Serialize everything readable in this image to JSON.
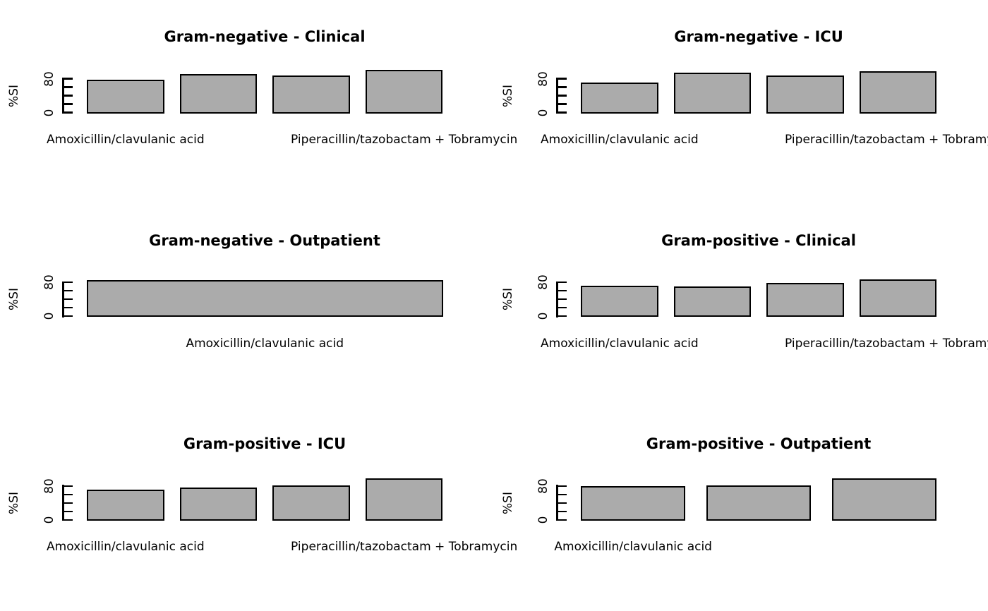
{
  "figure": {
    "background": "#FFFFFF",
    "text_color": "#000000",
    "bar_fill": "#ABABAB",
    "bar_border": "#000000"
  },
  "chart_data": [
    {
      "type": "bar",
      "title": "Gram-negative - Clinical",
      "grid": {
        "row": 0,
        "col": 0
      },
      "ylabel": "%SI",
      "ylim": [
        0,
        80
      ],
      "yticks": [
        0,
        20,
        40,
        60,
        80
      ],
      "ytick_labels_shown": [
        "0",
        "80"
      ],
      "values": [
        76,
        88,
        86,
        98
      ],
      "visible_categories": [
        {
          "label": "Amoxicillin/clavulanic acid",
          "bar_index": 0
        },
        {
          "label": "Piperacillin/tazobactam + Tobramycin",
          "bar_index": 3
        }
      ]
    },
    {
      "type": "bar",
      "title": "Gram-negative - ICU",
      "grid": {
        "row": 0,
        "col": 1
      },
      "ylabel": "%SI",
      "ylim": [
        0,
        80
      ],
      "yticks": [
        0,
        20,
        40,
        60,
        80
      ],
      "ytick_labels_shown": [
        "0",
        "80"
      ],
      "values": [
        69,
        92,
        85,
        96
      ],
      "visible_categories": [
        {
          "label": "Amoxicillin/clavulanic acid",
          "bar_index": 0
        },
        {
          "label": "Piperacillin/tazobactam + Tobramycin",
          "bar_index": 3
        }
      ]
    },
    {
      "type": "bar",
      "title": "Gram-negative - Outpatient",
      "grid": {
        "row": 1,
        "col": 0
      },
      "ylabel": "%SI",
      "ylim": [
        0,
        80
      ],
      "yticks": [
        0,
        20,
        40,
        60,
        80
      ],
      "ytick_labels_shown": [
        "0",
        "80"
      ],
      "values": [
        83
      ],
      "visible_categories": [
        {
          "label": "Amoxicillin/clavulanic acid",
          "bar_index": 0
        }
      ]
    },
    {
      "type": "bar",
      "title": "Gram-positive - Clinical",
      "grid": {
        "row": 1,
        "col": 1
      },
      "ylabel": "%SI",
      "ylim": [
        0,
        80
      ],
      "yticks": [
        0,
        20,
        40,
        60,
        80
      ],
      "ytick_labels_shown": [
        "0",
        "80"
      ],
      "values": [
        70,
        68,
        77,
        85
      ],
      "visible_categories": [
        {
          "label": "Amoxicillin/clavulanic acid",
          "bar_index": 0
        },
        {
          "label": "Piperacillin/tazobactam + Tobramycin",
          "bar_index": 3
        }
      ]
    },
    {
      "type": "bar",
      "title": "Gram-positive - ICU",
      "grid": {
        "row": 2,
        "col": 0
      },
      "ylabel": "%SI",
      "ylim": [
        0,
        80
      ],
      "yticks": [
        0,
        20,
        40,
        60,
        80
      ],
      "ytick_labels_shown": [
        "0",
        "80"
      ],
      "values": [
        69,
        74,
        80,
        96
      ],
      "visible_categories": [
        {
          "label": "Amoxicillin/clavulanic acid",
          "bar_index": 0
        },
        {
          "label": "Piperacillin/tazobactam + Tobramycin",
          "bar_index": 3
        }
      ]
    },
    {
      "type": "bar",
      "title": "Gram-positive - Outpatient",
      "grid": {
        "row": 2,
        "col": 1
      },
      "ylabel": "%SI",
      "ylim": [
        0,
        80
      ],
      "yticks": [
        0,
        20,
        40,
        60,
        80
      ],
      "ytick_labels_shown": [
        "0",
        "80"
      ],
      "values": [
        77,
        80,
        96
      ],
      "visible_categories": [
        {
          "label": "Amoxicillin/clavulanic acid",
          "bar_index": 0
        }
      ]
    }
  ]
}
